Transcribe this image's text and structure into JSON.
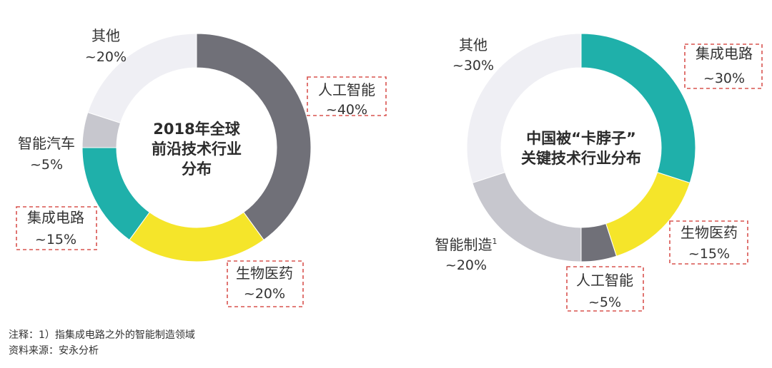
{
  "colors": {
    "dark_gray": "#707078",
    "yellow": "#F5E52A",
    "teal": "#1FB0AA",
    "light_gray": "#C7C7CE",
    "very_light_gray": "#EFEFF4",
    "highlight_box": "#D9534F"
  },
  "chart_data": [
    {
      "type": "pie",
      "donut": true,
      "title_lines": [
        "2018年全球",
        "前沿技术行业",
        "分布"
      ],
      "slices": [
        {
          "name": "人工智能",
          "value_label": "~40%",
          "value": 40,
          "color": "#707078",
          "highlighted": true
        },
        {
          "name": "生物医药",
          "value_label": "~20%",
          "value": 20,
          "color": "#F5E52A",
          "highlighted": true
        },
        {
          "name": "集成电路",
          "value_label": "~15%",
          "value": 15,
          "color": "#1FB0AA",
          "highlighted": true
        },
        {
          "name": "智能汽车",
          "value_label": "~5%",
          "value": 5,
          "color": "#C7C7CE",
          "highlighted": false
        },
        {
          "name": "其他",
          "value_label": "~20%",
          "value": 20,
          "color": "#EFEFF4",
          "highlighted": false
        }
      ]
    },
    {
      "type": "pie",
      "donut": true,
      "title_lines": [
        "中国被“卡脖子”",
        "关键技术行业分布"
      ],
      "slices": [
        {
          "name": "集成电路",
          "value_label": "~30%",
          "value": 30,
          "color": "#1FB0AA",
          "highlighted": true
        },
        {
          "name": "生物医药",
          "value_label": "~15%",
          "value": 15,
          "color": "#F5E52A",
          "highlighted": true
        },
        {
          "name": "人工智能",
          "value_label": "~5%",
          "value": 5,
          "color": "#707078",
          "highlighted": true
        },
        {
          "name": "智能制造",
          "superscript": "1",
          "value_label": "~20%",
          "value": 20,
          "color": "#C7C7CE",
          "highlighted": false
        },
        {
          "name": "其他",
          "value_label": "~30%",
          "value": 30,
          "color": "#EFEFF4",
          "highlighted": false
        }
      ]
    }
  ],
  "footer": {
    "note": "注释：1）指集成电路之外的智能制造领域",
    "source": "资料来源：安永分析"
  }
}
